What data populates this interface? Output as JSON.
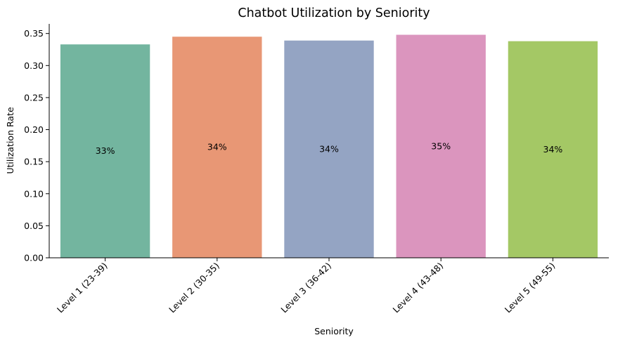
{
  "chart_data": {
    "type": "bar",
    "title": "Chatbot Utilization by Seniority",
    "xlabel": "Seniority",
    "ylabel": "Utilization Rate",
    "categories": [
      "Level 1 (23-39)",
      "Level 2 (30-35)",
      "Level 3 (36-42)",
      "Level 4 (43-48)",
      "Level 5 (49-55)"
    ],
    "values": [
      0.333,
      0.345,
      0.339,
      0.348,
      0.338
    ],
    "data_labels": [
      "33%",
      "34%",
      "34%",
      "35%",
      "34%"
    ],
    "colors": [
      "#73b59f",
      "#e89775",
      "#94a4c3",
      "#db95be",
      "#a4c865"
    ],
    "yticks": [
      "0.00",
      "0.05",
      "0.10",
      "0.15",
      "0.20",
      "0.25",
      "0.30",
      "0.35"
    ],
    "ylim": [
      0,
      0.365
    ],
    "grid": false,
    "legend": "none"
  }
}
